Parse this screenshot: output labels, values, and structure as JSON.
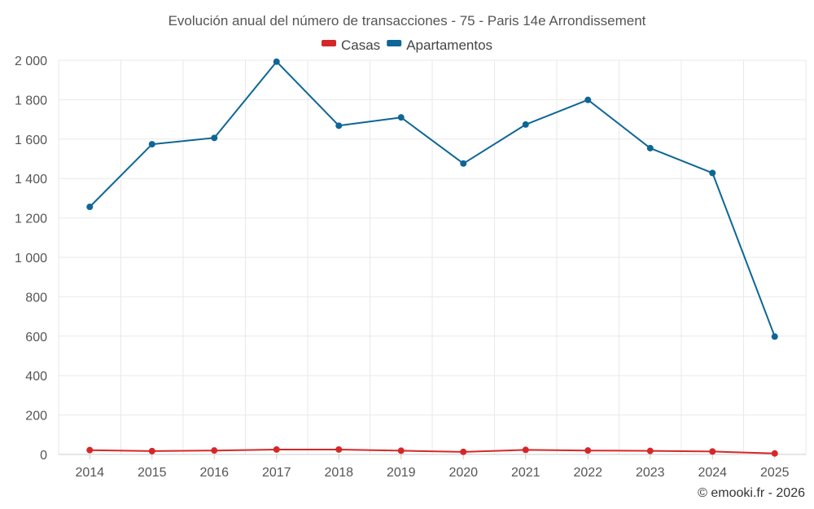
{
  "chart_data": {
    "type": "line",
    "title": "Evolución anual del número de transacciones - 75 - Paris 14e Arrondissement",
    "categories": [
      "2014",
      "2015",
      "2016",
      "2017",
      "2018",
      "2019",
      "2020",
      "2021",
      "2022",
      "2023",
      "2024",
      "2025"
    ],
    "series": [
      {
        "name": "Casas",
        "color": "#d62728",
        "values": [
          22,
          17,
          20,
          25,
          25,
          19,
          13,
          23,
          20,
          18,
          15,
          5
        ]
      },
      {
        "name": "Apartamentos",
        "color": "#0e6696",
        "values": [
          1256,
          1574,
          1606,
          1993,
          1668,
          1710,
          1476,
          1674,
          1799,
          1554,
          1428,
          598
        ]
      }
    ],
    "ylim": [
      0,
      2000
    ],
    "yticks": [
      0,
      200,
      400,
      600,
      800,
      1000,
      1200,
      1400,
      1600,
      1800,
      2000
    ],
    "ytick_labels": [
      "0",
      "200",
      "400",
      "600",
      "800",
      "1 000",
      "1 200",
      "1 400",
      "1 600",
      "1 800",
      "2 000"
    ],
    "xlabel": "",
    "ylabel": "",
    "grid": true,
    "legend_position": "top-center"
  },
  "credit": "© emooki.fr - 2026"
}
